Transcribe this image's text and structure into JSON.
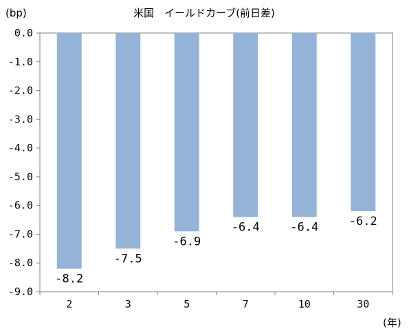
{
  "chart_data": {
    "type": "bar",
    "title": "米国　イールドカーブ(前日差)",
    "ylabel": "(bp)",
    "xlabel": "(年)",
    "categories": [
      "2",
      "3",
      "5",
      "7",
      "10",
      "30"
    ],
    "values": [
      -8.2,
      -7.5,
      -6.9,
      -6.4,
      -6.4,
      -6.2
    ],
    "data_labels": [
      "-8.2",
      "-7.5",
      "-6.9",
      "-6.4",
      "-6.4",
      "-6.2"
    ],
    "ylim": [
      -9.0,
      0.0
    ],
    "yticks": [
      0.0,
      -1.0,
      -2.0,
      -3.0,
      -4.0,
      -5.0,
      -6.0,
      -7.0,
      -8.0,
      -9.0
    ],
    "ytick_labels": [
      "0.0",
      "-1.0",
      "-2.0",
      "-3.0",
      "-4.0",
      "-5.0",
      "-6.0",
      "-7.0",
      "-8.0",
      "-9.0"
    ],
    "grid": false,
    "bar_color": "#95b3d7"
  }
}
